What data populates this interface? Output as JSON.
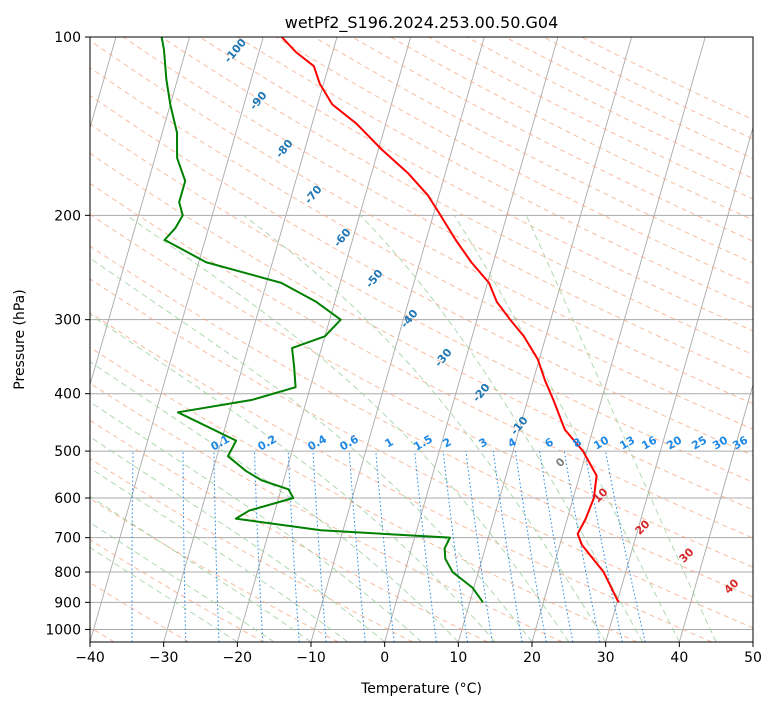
{
  "chart_data": {
    "type": "line",
    "title": "wetPf2_S196.2024.253.00.50.G04",
    "xlabel": "Temperature (°C)",
    "ylabel": "Pressure (hPa)",
    "xlim": [
      -40,
      50
    ],
    "ylim": [
      1050,
      100
    ],
    "y_scale": "log",
    "x_ticks": [
      "−40",
      "−30",
      "−20",
      "−10",
      "0",
      "10",
      "20",
      "30",
      "40",
      "50"
    ],
    "y_ticks": [
      {
        "p": 100,
        "label": "100"
      },
      {
        "p": 200,
        "label": "200"
      },
      {
        "p": 300,
        "label": "300"
      },
      {
        "p": 400,
        "label": "400"
      },
      {
        "p": 500,
        "label": "500"
      },
      {
        "p": 600,
        "label": "600"
      },
      {
        "p": 700,
        "label": "700"
      },
      {
        "p": 800,
        "label": "800"
      },
      {
        "p": 900,
        "label": "900"
      },
      {
        "p": 1000,
        "label": "1000"
      }
    ],
    "grid": true,
    "colors": {
      "temperature": "#ff0000",
      "dewpoint": "#008000",
      "isotherm": "#aaaaaa",
      "dry_adiabat": "#f4a582",
      "moist_adiabat": "#9ecf9e",
      "mixing_ratio": "#1e88e5",
      "adiabat_label": "#1f77b4",
      "moist_label_neg": "#808080",
      "moist_label_pos": "#d62728",
      "pressure_grid": "#aaaaaa"
    },
    "series": [
      {
        "key": "temperature",
        "points": [
          [
            30.2,
            900
          ],
          [
            27.0,
            800
          ],
          [
            23.0,
            720
          ],
          [
            22.0,
            690
          ],
          [
            22.5,
            650
          ],
          [
            22.8,
            600
          ],
          [
            22.3,
            550
          ],
          [
            19.5,
            500
          ],
          [
            16.2,
            460
          ],
          [
            13.5,
            410
          ],
          [
            11.6,
            380
          ],
          [
            9.8,
            350
          ],
          [
            7.0,
            320
          ],
          [
            4.5,
            300
          ],
          [
            2.0,
            280
          ],
          [
            0.2,
            260
          ],
          [
            -3.0,
            240
          ],
          [
            -6.0,
            220
          ],
          [
            -9.0,
            200
          ],
          [
            -11.5,
            185
          ],
          [
            -15.0,
            170
          ],
          [
            -19.5,
            155
          ],
          [
            -24.0,
            140
          ],
          [
            -28.0,
            130
          ],
          [
            -30.5,
            120
          ],
          [
            -32.0,
            112
          ],
          [
            -35.0,
            106
          ],
          [
            -37.5,
            100
          ]
        ]
      },
      {
        "key": "dewpoint",
        "points": [
          [
            11.8,
            900
          ],
          [
            9.8,
            850
          ],
          [
            6.5,
            800
          ],
          [
            5.0,
            760
          ],
          [
            4.5,
            730
          ],
          [
            4.8,
            700
          ],
          [
            -13.0,
            680
          ],
          [
            -25.0,
            650
          ],
          [
            -23.5,
            630
          ],
          [
            -18.0,
            600
          ],
          [
            -19.0,
            580
          ],
          [
            -23.0,
            560
          ],
          [
            -25.5,
            540
          ],
          [
            -28.5,
            510
          ],
          [
            -28.0,
            480
          ],
          [
            -37.0,
            430
          ],
          [
            -27.5,
            410
          ],
          [
            -22.0,
            390
          ],
          [
            -23.0,
            360
          ],
          [
            -24.0,
            335
          ],
          [
            -20.0,
            320
          ],
          [
            -18.5,
            300
          ],
          [
            -22.5,
            280
          ],
          [
            -28.0,
            260
          ],
          [
            -39.0,
            240
          ],
          [
            -45.5,
            220
          ],
          [
            -44.5,
            210
          ],
          [
            -44.0,
            200
          ],
          [
            -45.0,
            190
          ],
          [
            -45.0,
            175
          ],
          [
            -47.0,
            160
          ],
          [
            -48.0,
            145
          ],
          [
            -50.0,
            130
          ],
          [
            -51.5,
            118
          ],
          [
            -53.0,
            105
          ],
          [
            -53.8,
            100
          ]
        ]
      }
    ],
    "dry_adiabat_labels": [
      "-100",
      "-90",
      "-80",
      "-70",
      "-60",
      "-50",
      "-40",
      "-30",
      "-20",
      "-10"
    ],
    "moist_adiabat_labels": [
      "0",
      "10",
      "20",
      "30",
      "40"
    ],
    "mixing_ratio_labels": [
      "0.1",
      "0.2",
      "0.4",
      "0.6",
      "1",
      "1.5",
      "2",
      "3",
      "4",
      "6",
      "8",
      "10",
      "13",
      "16",
      "20",
      "25",
      "30",
      "36"
    ]
  }
}
